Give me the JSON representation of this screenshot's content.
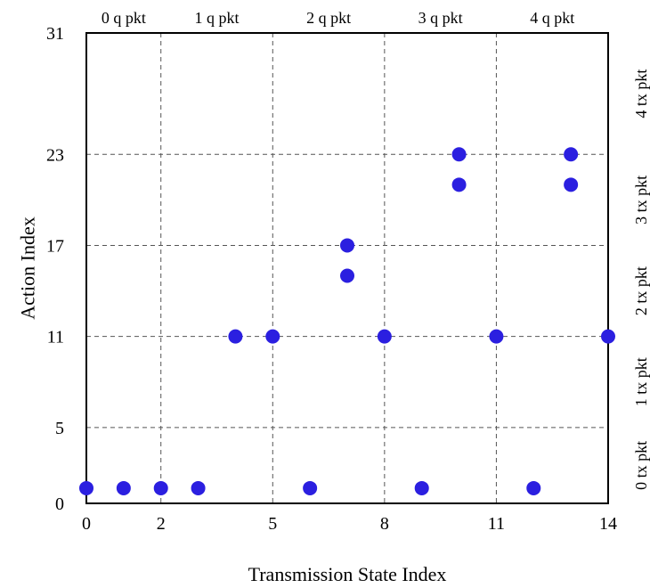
{
  "chart_data": {
    "type": "scatter",
    "xlabel": "Transmission State Index",
    "ylabel": "Action Index",
    "xlim": [
      0,
      14
    ],
    "ylim": [
      0,
      31
    ],
    "x_ticks": [
      0,
      2,
      5,
      8,
      11,
      14
    ],
    "y_ticks": [
      0,
      5,
      11,
      17,
      23,
      31
    ],
    "x_tick_labels": [
      "0",
      "2",
      "5",
      "8",
      "11",
      "14"
    ],
    "y_tick_labels": [
      "0",
      "5",
      "11",
      "17",
      "23",
      "31"
    ],
    "grid": true,
    "grid_style": "dashed",
    "marker_color": "#2b1fe0",
    "top_labels": [
      {
        "text": "0 q pkt",
        "x_from": 0,
        "x_to": 2
      },
      {
        "text": "1 q pkt",
        "x_from": 2,
        "x_to": 5
      },
      {
        "text": "2 q pkt",
        "x_from": 5,
        "x_to": 8
      },
      {
        "text": "3 q pkt",
        "x_from": 8,
        "x_to": 11
      },
      {
        "text": "4 q pkt",
        "x_from": 11,
        "x_to": 14
      }
    ],
    "right_labels": [
      {
        "text": "0 tx pkt",
        "y_from": 0,
        "y_to": 5
      },
      {
        "text": "1 tx pkt",
        "y_from": 5,
        "y_to": 11
      },
      {
        "text": "2 tx pkt",
        "y_from": 11,
        "y_to": 17
      },
      {
        "text": "3 tx pkt",
        "y_from": 17,
        "y_to": 23
      },
      {
        "text": "4 tx pkt",
        "y_from": 23,
        "y_to": 31
      }
    ],
    "points": [
      {
        "x": 0,
        "y": 1
      },
      {
        "x": 1,
        "y": 1
      },
      {
        "x": 2,
        "y": 1
      },
      {
        "x": 3,
        "y": 1
      },
      {
        "x": 4,
        "y": 11
      },
      {
        "x": 5,
        "y": 11
      },
      {
        "x": 6,
        "y": 1
      },
      {
        "x": 7,
        "y": 15
      },
      {
        "x": 7,
        "y": 17
      },
      {
        "x": 8,
        "y": 11
      },
      {
        "x": 9,
        "y": 1
      },
      {
        "x": 10,
        "y": 21
      },
      {
        "x": 10,
        "y": 23
      },
      {
        "x": 11,
        "y": 11
      },
      {
        "x": 12,
        "y": 1
      },
      {
        "x": 13,
        "y": 21
      },
      {
        "x": 13,
        "y": 23
      },
      {
        "x": 14,
        "y": 11
      }
    ]
  }
}
